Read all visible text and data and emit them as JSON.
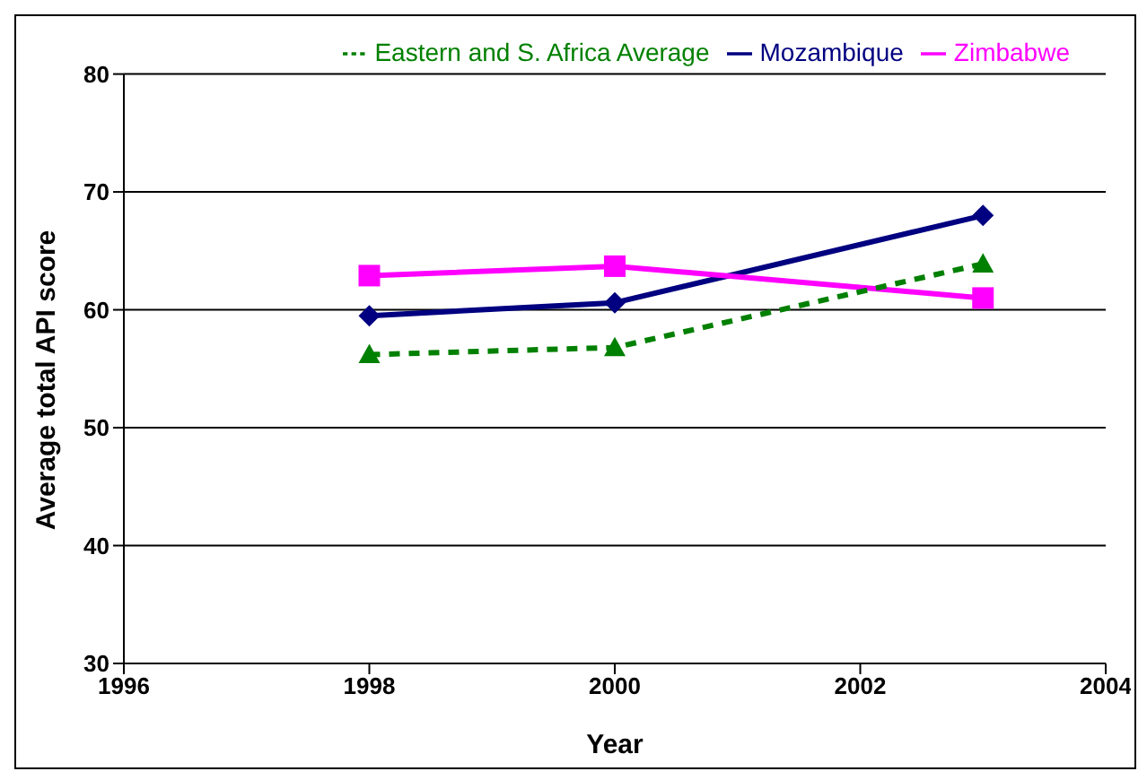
{
  "chart_data": {
    "type": "line",
    "xlabel": "Year",
    "ylabel": "Average total API score",
    "x": [
      1998,
      2000,
      2003
    ],
    "series": [
      {
        "name": "Mozambique",
        "color": "#000080",
        "values": [
          59.5,
          60.6,
          68
        ],
        "marker": "diamond",
        "line_style": "solid"
      },
      {
        "name": "Zimbabwe",
        "color": "#ff00ff",
        "values": [
          62.9,
          63.7,
          61
        ],
        "marker": "square",
        "line_style": "solid"
      },
      {
        "name": "Eastern and S. Africa Average",
        "color": "#008000",
        "values": [
          56.2,
          56.8,
          63.9
        ],
        "marker": "triangle",
        "line_style": "dashed"
      }
    ],
    "xlim": [
      1996,
      2004
    ],
    "xticks": [
      1996,
      1998,
      2000,
      2002,
      2004
    ],
    "ylim": [
      30,
      80
    ],
    "yticks": [
      30,
      40,
      50,
      60,
      70,
      80
    ],
    "grid": "y",
    "legend": "top right"
  }
}
